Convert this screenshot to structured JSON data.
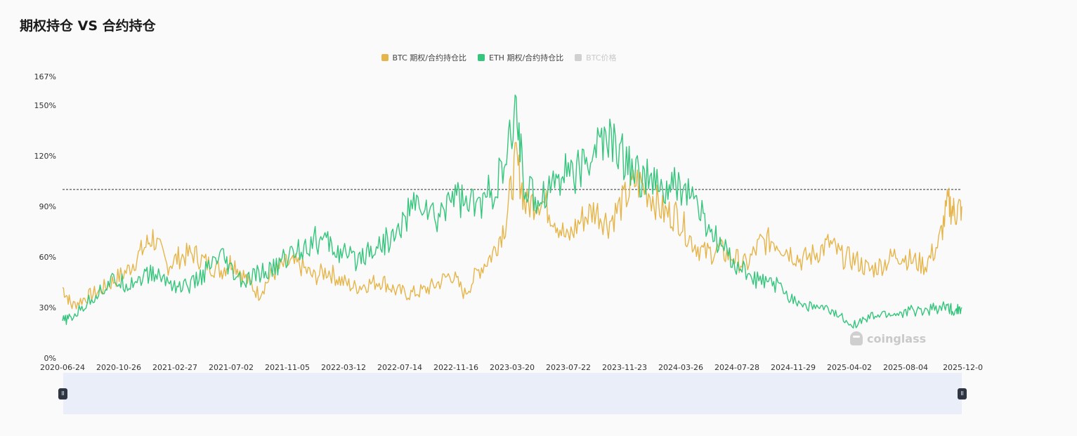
{
  "title": "期权持仓 VS 合约持仓",
  "legend": [
    {
      "label": "BTC  期权/合约持仓比",
      "color": "#e6b54a",
      "active": true
    },
    {
      "label": "ETH  期权/合约持仓比",
      "color": "#35c57c",
      "active": true
    },
    {
      "label": "BTC价格",
      "color": "#d0d0d0",
      "active": false
    }
  ],
  "watermark": "coinglass",
  "colors": {
    "btc": "#e6b54a",
    "eth": "#35c57c",
    "grid": "#eeeeee",
    "reference": "#333333"
  },
  "chart_data": {
    "type": "line",
    "y_ticks": [
      "0%",
      "30%",
      "60%",
      "90%",
      "120%",
      "150%",
      "167%"
    ],
    "y_tick_values": [
      0,
      30,
      60,
      90,
      120,
      150,
      167
    ],
    "ylim": [
      0,
      167
    ],
    "x_ticks": [
      "2020-06-24",
      "2020-10-26",
      "2021-02-27",
      "2021-07-02",
      "2021-11-05",
      "2022-03-12",
      "2022-07-14",
      "2022-11-16",
      "2023-03-20",
      "2023-07-22",
      "2023-11-23",
      "2024-03-26",
      "2024-07-28",
      "2024-11-29",
      "2025-04-02",
      "2025-08-04",
      "2025-12-0"
    ],
    "xlim": [
      "2020-06-24",
      "2025-12-05"
    ],
    "reference_line": 100,
    "grid": false,
    "legend_position": "top-center",
    "series": [
      {
        "name": "BTC  期权/合约持仓比",
        "x": [
          "2020-06-24",
          "2020-07-15",
          "2020-08-15",
          "2020-09-15",
          "2020-10-15",
          "2020-11-15",
          "2020-12-15",
          "2021-01-10",
          "2021-02-10",
          "2021-03-10",
          "2021-04-10",
          "2021-05-10",
          "2021-06-10",
          "2021-07-05",
          "2021-08-01",
          "2021-09-01",
          "2021-10-01",
          "2021-11-01",
          "2021-12-01",
          "2022-01-01",
          "2022-02-01",
          "2022-03-01",
          "2022-04-01",
          "2022-05-01",
          "2022-06-01",
          "2022-07-01",
          "2022-08-01",
          "2022-09-01",
          "2022-10-01",
          "2022-11-01",
          "2022-12-01",
          "2023-01-01",
          "2023-02-01",
          "2023-03-01",
          "2023-03-25",
          "2023-04-15",
          "2023-05-15",
          "2023-06-15",
          "2023-07-15",
          "2023-08-15",
          "2023-09-15",
          "2023-10-15",
          "2023-11-15",
          "2023-12-15",
          "2024-01-15",
          "2024-02-15",
          "2024-03-15",
          "2024-04-15",
          "2024-05-15",
          "2024-06-15",
          "2024-07-15",
          "2024-08-15",
          "2024-09-15",
          "2024-10-15",
          "2024-11-15",
          "2024-12-15",
          "2025-01-15",
          "2025-02-15",
          "2025-03-15",
          "2025-04-15",
          "2025-05-15",
          "2025-06-15",
          "2025-07-15",
          "2025-08-15",
          "2025-09-15",
          "2025-10-15",
          "2025-11-05",
          "2025-11-20",
          "2025-12-05"
        ],
        "values": [
          42,
          31,
          36,
          40,
          46,
          52,
          63,
          72,
          55,
          60,
          62,
          56,
          52,
          58,
          48,
          38,
          50,
          56,
          55,
          48,
          52,
          46,
          42,
          44,
          46,
          40,
          38,
          40,
          44,
          50,
          38,
          52,
          62,
          80,
          118,
          90,
          95,
          85,
          70,
          82,
          88,
          80,
          92,
          105,
          98,
          86,
          85,
          70,
          62,
          64,
          60,
          55,
          68,
          70,
          64,
          58,
          62,
          68,
          60,
          58,
          52,
          56,
          62,
          58,
          55,
          68,
          92,
          86,
          90
        ]
      },
      {
        "name": "ETH  期权/合约持仓比",
        "x": [
          "2020-06-24",
          "2020-07-15",
          "2020-08-15",
          "2020-09-15",
          "2020-10-15",
          "2020-11-15",
          "2020-12-15",
          "2021-01-10",
          "2021-02-10",
          "2021-03-10",
          "2021-04-10",
          "2021-05-10",
          "2021-06-10",
          "2021-07-05",
          "2021-08-01",
          "2021-09-01",
          "2021-10-01",
          "2021-11-01",
          "2021-12-01",
          "2022-01-01",
          "2022-02-01",
          "2022-03-01",
          "2022-04-01",
          "2022-05-01",
          "2022-06-01",
          "2022-07-01",
          "2022-08-01",
          "2022-09-01",
          "2022-10-01",
          "2022-11-01",
          "2022-12-01",
          "2023-01-01",
          "2023-02-01",
          "2023-03-01",
          "2023-03-25",
          "2023-04-15",
          "2023-05-15",
          "2023-06-15",
          "2023-07-15",
          "2023-08-15",
          "2023-09-15",
          "2023-10-15",
          "2023-11-15",
          "2023-12-15",
          "2024-01-15",
          "2024-02-15",
          "2024-03-15",
          "2024-04-15",
          "2024-05-15",
          "2024-06-15",
          "2024-07-15",
          "2024-08-15",
          "2024-09-15",
          "2024-10-15",
          "2024-11-15",
          "2024-12-15",
          "2025-01-15",
          "2025-02-15",
          "2025-03-15",
          "2025-04-15",
          "2025-05-15",
          "2025-06-15",
          "2025-07-15",
          "2025-08-15",
          "2025-09-15",
          "2025-10-15",
          "2025-11-05",
          "2025-11-20",
          "2025-12-05"
        ],
        "values": [
          22,
          24,
          32,
          40,
          46,
          44,
          48,
          50,
          46,
          42,
          44,
          52,
          60,
          50,
          44,
          50,
          52,
          60,
          65,
          70,
          68,
          62,
          58,
          64,
          68,
          72,
          88,
          92,
          80,
          100,
          92,
          90,
          100,
          112,
          148,
          98,
          95,
          105,
          112,
          110,
          125,
          130,
          120,
          110,
          105,
          98,
          102,
          98,
          80,
          68,
          58,
          50,
          45,
          44,
          38,
          32,
          30,
          28,
          24,
          20,
          24,
          26,
          26,
          28,
          28,
          30,
          30,
          28,
          30
        ]
      }
    ]
  }
}
